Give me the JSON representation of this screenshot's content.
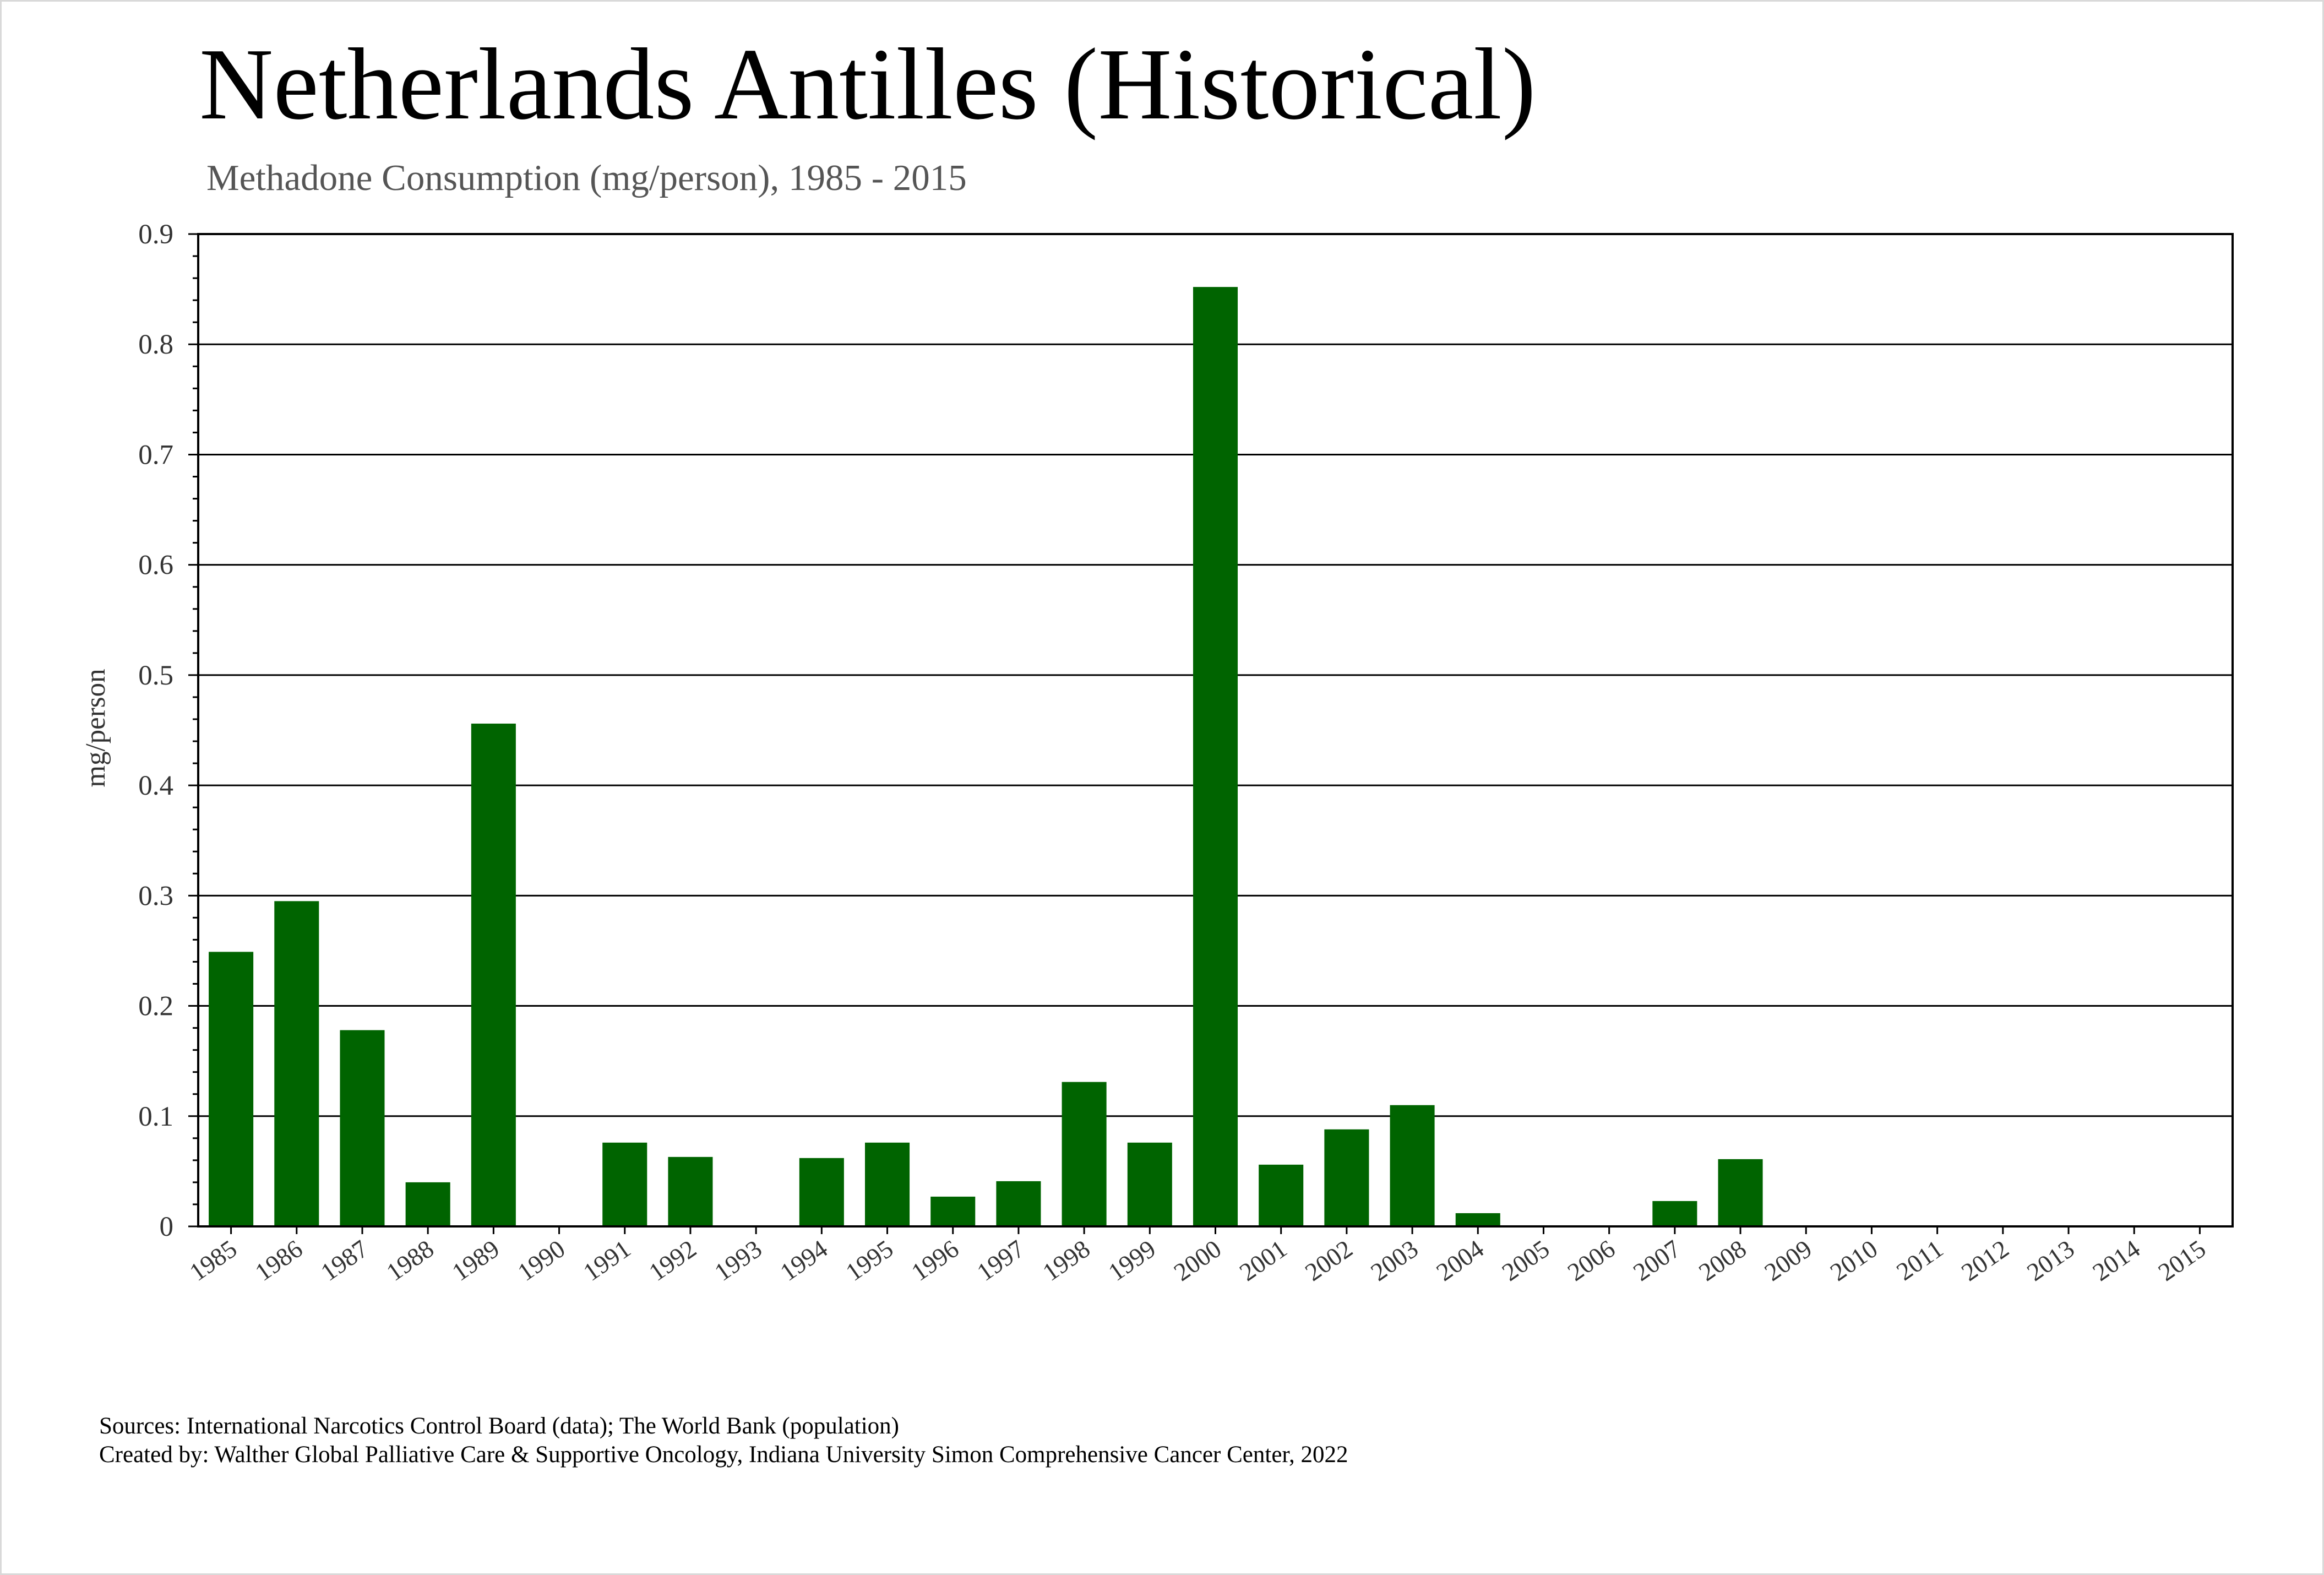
{
  "title": "Netherlands Antilles (Historical)",
  "subtitle": "Methadone Consumption (mg/person), 1985 - 2015",
  "sources": {
    "line1": "Sources: International Narcotics Control Board (data); The World Bank (population)",
    "line2": "Created by: Walther Global Palliative Care & Supportive Oncology, Indiana University Simon Comprehensive Cancer Center, 2022"
  },
  "colors": {
    "bar": "#006400",
    "grid": "#000000",
    "text": "#333333"
  },
  "chart_data": {
    "type": "bar",
    "title": "Netherlands Antilles (Historical)",
    "subtitle": "Methadone Consumption (mg/person), 1985 - 2015",
    "xlabel": "",
    "ylabel": "mg/person",
    "ylim": [
      0,
      0.9
    ],
    "yticks": [
      "0",
      "0.1",
      "0.2",
      "0.3",
      "0.4",
      "0.5",
      "0.6",
      "0.7",
      "0.8",
      "0.9"
    ],
    "grid": true,
    "categories": [
      "1985",
      "1986",
      "1987",
      "1988",
      "1989",
      "1990",
      "1991",
      "1992",
      "1993",
      "1994",
      "1995",
      "1996",
      "1997",
      "1998",
      "1999",
      "2000",
      "2001",
      "2002",
      "2003",
      "2004",
      "2005",
      "2006",
      "2007",
      "2008",
      "2009",
      "2010",
      "2011",
      "2012",
      "2013",
      "2014",
      "2015"
    ],
    "values": [
      0.249,
      0.295,
      0.178,
      0.04,
      0.456,
      0,
      0.076,
      0.063,
      0,
      0.062,
      0.076,
      0.027,
      0.041,
      0.131,
      0.076,
      0.852,
      0.056,
      0.088,
      0.11,
      0.012,
      0,
      0,
      0.023,
      0.061,
      0,
      0,
      0,
      0,
      0,
      0,
      0
    ]
  }
}
